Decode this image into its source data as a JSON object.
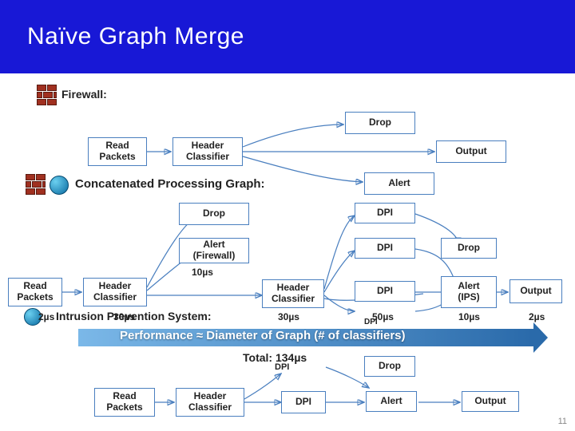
{
  "title": "Naïve Graph Merge",
  "slide_number": "11",
  "labels": {
    "firewall": "Firewall:",
    "concat": "Concatenated Processing Graph:",
    "ips": "Intrusion Prevention System:",
    "perf": "Performance ≈ Diameter of Graph (# of classifiers)",
    "total": "Total: 134µs"
  },
  "boxes": {
    "fw_read": "Read\nPackets",
    "fw_hdr": "Header\nClassifier",
    "fw_drop": "Drop",
    "fw_output": "Output",
    "fw_alert": "Alert",
    "cg_read": "Read\nPackets",
    "cg_hdr": "Header\nClassifier",
    "cg_drop": "Drop",
    "cg_alertfw": "Alert\n(Firewall)",
    "cg_hdr2": "Header\nClassifier",
    "cg_dpi1": "DPI",
    "cg_dpi2": "DPI",
    "cg_dpi3": "DPI",
    "cg_drop2": "Drop",
    "cg_alertips": "Alert\n(IPS)",
    "cg_output": "Output",
    "ips_read": "Read\nPackets",
    "ips_hdr": "Header\nClassifier",
    "ips_dpi": "DPI",
    "ips_dpi_small": "DPI",
    "ips_drop": "Drop",
    "ips_alert": "Alert",
    "ips_output": "Output"
  },
  "timings": {
    "t2a": "2µs",
    "t30a": "30µs",
    "t10": "10µs",
    "t30b": "30µs",
    "t50": "50µs",
    "t10b": "10µs",
    "t2b": "2µs"
  },
  "colors": {
    "title_bg": "#1818d6",
    "box_border": "#4a7fbf",
    "arrow_start": "#7bb8e8",
    "arrow_end": "#2a6aaa"
  }
}
